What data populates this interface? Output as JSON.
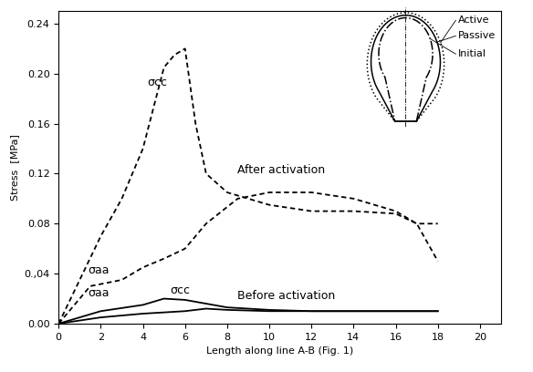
{
  "chart_data": {
    "type": "line",
    "x_label": "Length along line A-B (Fig. 1)",
    "y_label": "Stress  [MPa]",
    "xlim": [
      0,
      21
    ],
    "ylim": [
      0,
      0.25
    ],
    "xticks": [
      0,
      2,
      4,
      6,
      8,
      10,
      12,
      14,
      16,
      18,
      20
    ],
    "yticks": [
      {
        "value": 0,
        "label": "0.00"
      },
      {
        "value": 0.04,
        "label": "0.,04"
      },
      0.08,
      0.12,
      0.16,
      {
        "value": 0.2,
        "label": "0.20"
      },
      0.24
    ],
    "grid": false,
    "series": [
      {
        "name": "σcc",
        "color": "#000000",
        "line_style": "dashed",
        "x": [
          0,
          1,
          2,
          3,
          4,
          5,
          5.5,
          6,
          6.5,
          7,
          8,
          9,
          10,
          12,
          14,
          16,
          17,
          18
        ],
        "values": [
          0,
          0.035,
          0.07,
          0.1,
          0.14,
          0.205,
          0.215,
          0.22,
          0.16,
          0.12,
          0.105,
          0.1,
          0.095,
          0.09,
          0.09,
          0.088,
          0.08,
          0.08
        ]
      },
      {
        "name": "σaa",
        "color": "#000000",
        "line_style": "dashed",
        "x": [
          0,
          1.5,
          3,
          4,
          5,
          6,
          7,
          8.5,
          10,
          12,
          14,
          16,
          17,
          18
        ],
        "values": [
          0,
          0.03,
          0.035,
          0.045,
          0.052,
          0.06,
          0.08,
          0.1,
          0.105,
          0.105,
          0.1,
          0.09,
          0.08,
          0.05
        ]
      },
      {
        "name": "σaa",
        "color": "#000000",
        "line_style": "solid",
        "x": [
          0,
          2,
          4,
          5,
          6,
          8,
          10,
          12,
          14,
          16,
          18
        ],
        "values": [
          0,
          0.01,
          0.015,
          0.02,
          0.019,
          0.013,
          0.011,
          0.01,
          0.01,
          0.01,
          0.01
        ]
      },
      {
        "name": "σcc",
        "color": "#000000",
        "line_style": "solid",
        "x": [
          0,
          2,
          4,
          6,
          7,
          8,
          10,
          12,
          14,
          16,
          18
        ],
        "values": [
          0,
          0.005,
          0.008,
          0.01,
          0.012,
          0.011,
          0.01,
          0.01,
          0.01,
          0.01,
          0.01
        ]
      }
    ],
    "annotations": [
      "After activation",
      "Before activation"
    ],
    "inset_labels": [
      "Active",
      "Passive",
      "Initial"
    ]
  }
}
